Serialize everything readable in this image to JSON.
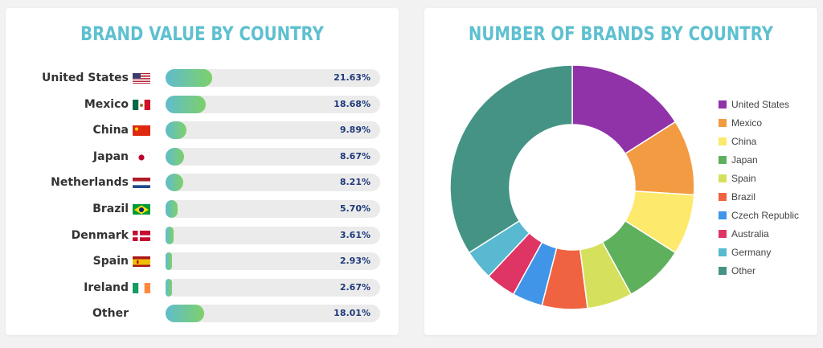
{
  "left_title": "BRAND VALUE BY COUNTRY",
  "right_title": "NUMBER OF BRANDS BY COUNTRY",
  "chart_data": [
    {
      "type": "bar",
      "title": "BRAND VALUE BY COUNTRY",
      "categories": [
        "United States",
        "Mexico",
        "China",
        "Japan",
        "Netherlands",
        "Brazil",
        "Denmark",
        "Spain",
        "Ireland",
        "Other"
      ],
      "values": [
        21.63,
        18.68,
        9.89,
        8.67,
        8.21,
        5.7,
        3.61,
        2.93,
        2.67,
        18.01
      ],
      "labels": [
        "21.63%",
        "18.68%",
        "9.89%",
        "8.67%",
        "8.21%",
        "5.70%",
        "3.61%",
        "2.93%",
        "2.67%",
        "18.01%"
      ],
      "flags": [
        "us",
        "mexico",
        "china",
        "japan",
        "netherlands",
        "brazil",
        "denmark",
        "spain",
        "ireland",
        ""
      ],
      "ylim": [
        0,
        100
      ],
      "colors": {
        "bar_start": "#5fbccd",
        "bar_end": "#7ed069",
        "track": "#ebebeb",
        "label": "#1f3a7a"
      }
    },
    {
      "type": "pie",
      "title": "NUMBER OF BRANDS BY COUNTRY",
      "categories": [
        "United States",
        "Mexico",
        "China",
        "Japan",
        "Spain",
        "Brazil",
        "Czech Republic",
        "Australia",
        "Germany",
        "Other"
      ],
      "values": [
        16,
        10,
        8,
        8,
        6,
        6,
        4,
        4,
        4,
        34
      ],
      "colors": [
        "#9032a8",
        "#f39b42",
        "#fde96b",
        "#5fb05c",
        "#d5e05c",
        "#ef6340",
        "#4195e8",
        "#df3564",
        "#58b9d1",
        "#449384"
      ],
      "legend": "right",
      "donut": true
    }
  ]
}
